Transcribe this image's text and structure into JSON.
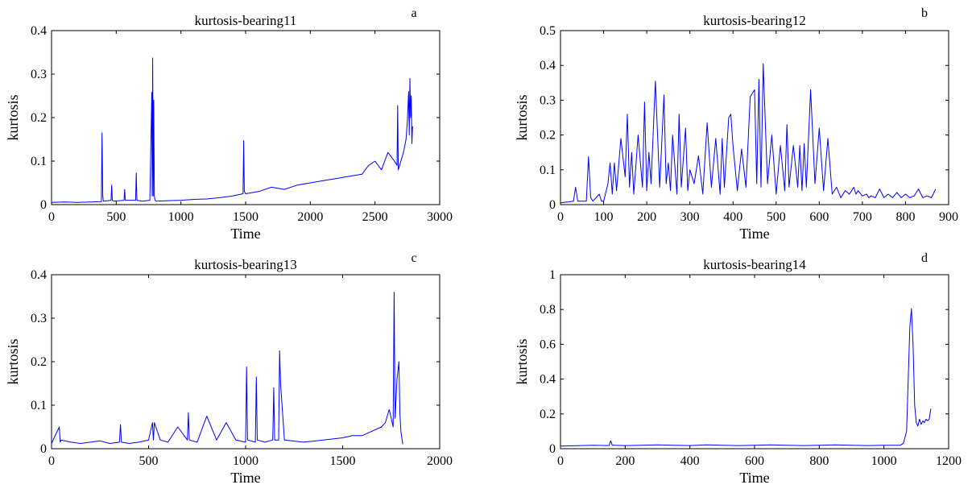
{
  "chart_data": [
    {
      "type": "line",
      "panel_letter": "a",
      "title": "kurtosis-bearing11",
      "xlabel": "Time",
      "ylabel": "kurtosis",
      "xlim": [
        0,
        3000
      ],
      "ylim": [
        0,
        0.4
      ],
      "xticks": [
        0,
        500,
        1000,
        1500,
        2000,
        2500,
        3000
      ],
      "yticks": [
        0,
        0.1,
        0.2,
        0.3,
        0.4
      ],
      "xtick_labels": [
        "0",
        "500",
        "1000",
        "1500",
        "2000",
        "2500",
        "3000"
      ],
      "ytick_labels": [
        "0",
        "0.1",
        "0.2",
        "0.3",
        "0.4"
      ],
      "grid": false,
      "line_color": "#0000ff",
      "x": [
        0,
        100,
        200,
        300,
        385,
        390,
        396,
        400,
        460,
        465,
        470,
        480,
        560,
        565,
        570,
        650,
        655,
        660,
        700,
        760,
        775,
        778,
        782,
        786,
        790,
        795,
        800,
        810,
        900,
        1000,
        1100,
        1200,
        1300,
        1400,
        1480,
        1485,
        1490,
        1500,
        1600,
        1700,
        1800,
        1900,
        2000,
        2100,
        2200,
        2300,
        2400,
        2450,
        2500,
        2550,
        2600,
        2650,
        2670,
        2675,
        2680,
        2700,
        2720,
        2740,
        2750,
        2760,
        2765,
        2770,
        2775,
        2780,
        2785,
        2790
      ],
      "y": [
        0.005,
        0.006,
        0.005,
        0.006,
        0.007,
        0.165,
        0.02,
        0.008,
        0.01,
        0.045,
        0.01,
        0.008,
        0.01,
        0.035,
        0.01,
        0.01,
        0.073,
        0.01,
        0.008,
        0.01,
        0.258,
        0.02,
        0.337,
        0.02,
        0.24,
        0.02,
        0.01,
        0.008,
        0.009,
        0.01,
        0.012,
        0.013,
        0.016,
        0.02,
        0.025,
        0.147,
        0.03,
        0.025,
        0.03,
        0.04,
        0.035,
        0.045,
        0.05,
        0.055,
        0.06,
        0.065,
        0.07,
        0.09,
        0.1,
        0.08,
        0.12,
        0.1,
        0.09,
        0.228,
        0.08,
        0.1,
        0.12,
        0.15,
        0.19,
        0.26,
        0.16,
        0.29,
        0.2,
        0.25,
        0.14,
        0.18
      ]
    },
    {
      "type": "line",
      "panel_letter": "b",
      "title": "kurtosis-bearing12",
      "xlabel": "Time",
      "ylabel": "kurtosis",
      "xlim": [
        0,
        900
      ],
      "ylim": [
        0,
        0.5
      ],
      "xticks": [
        0,
        100,
        200,
        300,
        400,
        500,
        600,
        700,
        800,
        900
      ],
      "yticks": [
        0,
        0.1,
        0.2,
        0.3,
        0.4,
        0.5
      ],
      "xtick_labels": [
        "0",
        "100",
        "200",
        "300",
        "400",
        "500",
        "600",
        "700",
        "800",
        "900"
      ],
      "ytick_labels": [
        "0",
        "0.1",
        "0.2",
        "0.3",
        "0.4",
        "0.5"
      ],
      "grid": false,
      "line_color": "#0000ff",
      "x": [
        0,
        20,
        30,
        35,
        40,
        60,
        65,
        70,
        75,
        90,
        95,
        100,
        110,
        115,
        120,
        125,
        130,
        140,
        150,
        155,
        160,
        165,
        170,
        180,
        190,
        195,
        200,
        205,
        210,
        220,
        230,
        240,
        245,
        250,
        255,
        260,
        270,
        275,
        280,
        290,
        295,
        300,
        310,
        320,
        330,
        340,
        350,
        360,
        370,
        375,
        380,
        390,
        395,
        400,
        410,
        420,
        430,
        440,
        450,
        455,
        460,
        465,
        470,
        480,
        490,
        500,
        510,
        520,
        525,
        530,
        540,
        550,
        555,
        560,
        565,
        570,
        580,
        590,
        600,
        610,
        620,
        630,
        640,
        650,
        660,
        670,
        680,
        685,
        690,
        700,
        710,
        715,
        720,
        730,
        740,
        750,
        760,
        770,
        780,
        790,
        800,
        810,
        820,
        830,
        840,
        850,
        860,
        870
      ],
      "y": [
        0.005,
        0.008,
        0.01,
        0.05,
        0.01,
        0.01,
        0.138,
        0.02,
        0.01,
        0.03,
        0.01,
        0.01,
        0.06,
        0.12,
        0.03,
        0.12,
        0.04,
        0.19,
        0.08,
        0.26,
        0.05,
        0.15,
        0.03,
        0.2,
        0.05,
        0.295,
        0.04,
        0.15,
        0.06,
        0.355,
        0.05,
        0.315,
        0.06,
        0.12,
        0.04,
        0.2,
        0.03,
        0.26,
        0.05,
        0.22,
        0.04,
        0.1,
        0.06,
        0.14,
        0.03,
        0.235,
        0.05,
        0.19,
        0.03,
        0.19,
        0.05,
        0.25,
        0.26,
        0.17,
        0.04,
        0.16,
        0.05,
        0.31,
        0.33,
        0.06,
        0.36,
        0.05,
        0.405,
        0.06,
        0.2,
        0.03,
        0.17,
        0.04,
        0.23,
        0.05,
        0.17,
        0.05,
        0.17,
        0.04,
        0.175,
        0.05,
        0.33,
        0.06,
        0.22,
        0.04,
        0.19,
        0.03,
        0.05,
        0.02,
        0.04,
        0.03,
        0.05,
        0.03,
        0.04,
        0.025,
        0.03,
        0.02,
        0.025,
        0.02,
        0.045,
        0.02,
        0.03,
        0.02,
        0.035,
        0.02,
        0.03,
        0.02,
        0.025,
        0.045,
        0.02,
        0.025,
        0.02,
        0.045
      ]
    },
    {
      "type": "line",
      "panel_letter": "c",
      "title": "kurtosis-bearing13",
      "xlabel": "Time",
      "ylabel": "kurtosis",
      "xlim": [
        0,
        2000
      ],
      "ylim": [
        0,
        0.4
      ],
      "xticks": [
        0,
        500,
        1000,
        1500,
        2000
      ],
      "yticks": [
        0,
        0.1,
        0.2,
        0.3,
        0.4
      ],
      "xtick_labels": [
        "0",
        "500",
        "1000",
        "1500",
        "2000"
      ],
      "ytick_labels": [
        "0",
        "0.1",
        "0.2",
        "0.3",
        "0.4"
      ],
      "grid": false,
      "line_color": "#0000ff",
      "x": [
        0,
        40,
        45,
        50,
        100,
        150,
        200,
        250,
        300,
        350,
        355,
        360,
        400,
        450,
        500,
        520,
        525,
        530,
        560,
        600,
        650,
        700,
        705,
        710,
        750,
        800,
        850,
        900,
        950,
        1000,
        1005,
        1010,
        1050,
        1055,
        1060,
        1100,
        1140,
        1145,
        1150,
        1170,
        1175,
        1180,
        1200,
        1300,
        1400,
        1500,
        1550,
        1600,
        1650,
        1700,
        1720,
        1740,
        1760,
        1765,
        1770,
        1780,
        1790,
        1795,
        1800,
        1810
      ],
      "y": [
        0.012,
        0.05,
        0.015,
        0.02,
        0.015,
        0.012,
        0.015,
        0.018,
        0.012,
        0.015,
        0.055,
        0.015,
        0.012,
        0.015,
        0.02,
        0.06,
        0.02,
        0.06,
        0.02,
        0.015,
        0.05,
        0.02,
        0.083,
        0.02,
        0.015,
        0.075,
        0.02,
        0.06,
        0.02,
        0.015,
        0.188,
        0.02,
        0.015,
        0.165,
        0.02,
        0.015,
        0.02,
        0.14,
        0.02,
        0.02,
        0.225,
        0.15,
        0.02,
        0.015,
        0.02,
        0.025,
        0.03,
        0.03,
        0.04,
        0.05,
        0.06,
        0.09,
        0.05,
        0.36,
        0.07,
        0.16,
        0.2,
        0.08,
        0.04,
        0.01
      ]
    },
    {
      "type": "line",
      "panel_letter": "d",
      "title": "kurtosis-bearing14",
      "xlabel": "Time",
      "ylabel": "kurtosis",
      "xlim": [
        0,
        1200
      ],
      "ylim": [
        0,
        1
      ],
      "xticks": [
        0,
        200,
        400,
        600,
        800,
        1000,
        1200
      ],
      "yticks": [
        0,
        0.2,
        0.4,
        0.6,
        0.8,
        1
      ],
      "xtick_labels": [
        "0",
        "200",
        "400",
        "600",
        "800",
        "1000",
        "1200"
      ],
      "ytick_labels": [
        "0",
        "0.2",
        "0.4",
        "0.6",
        "0.8",
        "1"
      ],
      "grid": false,
      "line_color": "#0000ff",
      "x": [
        0,
        50,
        100,
        150,
        155,
        160,
        200,
        250,
        300,
        350,
        400,
        450,
        500,
        550,
        600,
        650,
        700,
        750,
        800,
        850,
        900,
        950,
        1000,
        1050,
        1060,
        1070,
        1075,
        1080,
        1085,
        1090,
        1095,
        1100,
        1105,
        1110,
        1115,
        1120,
        1125,
        1130,
        1135,
        1140,
        1145
      ],
      "y": [
        0.015,
        0.017,
        0.02,
        0.018,
        0.045,
        0.02,
        0.018,
        0.02,
        0.022,
        0.02,
        0.018,
        0.022,
        0.02,
        0.018,
        0.02,
        0.022,
        0.02,
        0.018,
        0.02,
        0.022,
        0.02,
        0.018,
        0.02,
        0.02,
        0.03,
        0.1,
        0.4,
        0.7,
        0.805,
        0.6,
        0.25,
        0.15,
        0.13,
        0.17,
        0.14,
        0.16,
        0.15,
        0.17,
        0.16,
        0.17,
        0.23
      ]
    }
  ]
}
